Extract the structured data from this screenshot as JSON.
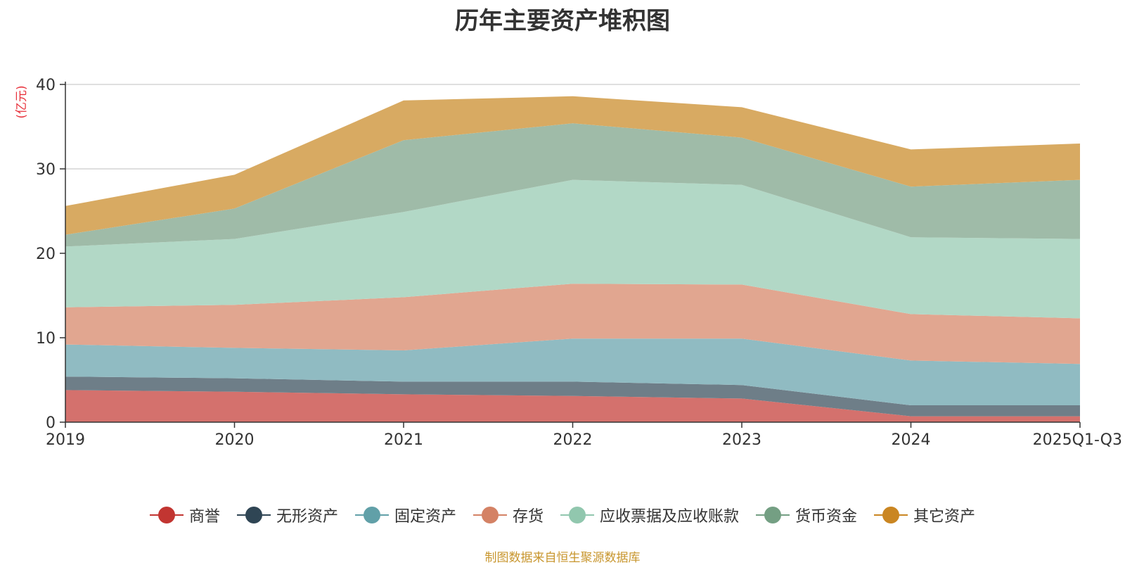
{
  "title": "历年主要资产堆积图",
  "source_note": "制图数据来自恒生聚源数据库",
  "colors": {
    "source_note": "#c8962e",
    "ylabel": "#e8303a"
  },
  "chart_data": {
    "type": "area",
    "stacked": true,
    "title": "历年主要资产堆积图",
    "ylabel": "(亿元)",
    "xlabel": "",
    "ylim": [
      0,
      40
    ],
    "yticks": [
      0,
      10,
      20,
      30,
      40
    ],
    "grid": true,
    "legend_position": "bottom",
    "categories": [
      "2019",
      "2020",
      "2021",
      "2022",
      "2023",
      "2024",
      "2025Q1-Q3"
    ],
    "series": [
      {
        "name": "商誉",
        "legend_color": "#c23531",
        "fill": "#d4716d",
        "values": [
          3.8,
          3.6,
          3.3,
          3.1,
          2.8,
          0.7,
          0.7
        ]
      },
      {
        "name": "无形资产",
        "legend_color": "#2f4554",
        "fill": "#6e7e88",
        "values": [
          1.6,
          1.6,
          1.5,
          1.7,
          1.6,
          1.3,
          1.3
        ]
      },
      {
        "name": "固定资产",
        "legend_color": "#61a0a8",
        "fill": "#90bbc2",
        "values": [
          3.8,
          3.6,
          3.7,
          5.1,
          5.5,
          5.3,
          4.9
        ]
      },
      {
        "name": "存货",
        "legend_color": "#d48265",
        "fill": "#e1a690",
        "values": [
          4.4,
          5.1,
          6.3,
          6.5,
          6.4,
          5.5,
          5.4
        ]
      },
      {
        "name": "应收票据及应收账款",
        "legend_color": "#91c7ae",
        "fill": "#b2d8c6",
        "values": [
          7.2,
          7.8,
          10.1,
          12.3,
          11.8,
          9.1,
          9.4
        ]
      },
      {
        "name": "货币资金",
        "legend_color": "#749f83",
        "fill": "#9fbba8",
        "values": [
          1.4,
          3.6,
          8.5,
          6.7,
          5.6,
          6.0,
          7.0
        ]
      },
      {
        "name": "其它资产",
        "legend_color": "#ca8622",
        "fill": "#d8aa62",
        "values": [
          3.4,
          4.0,
          4.7,
          3.2,
          3.6,
          4.4,
          4.3
        ]
      }
    ]
  }
}
